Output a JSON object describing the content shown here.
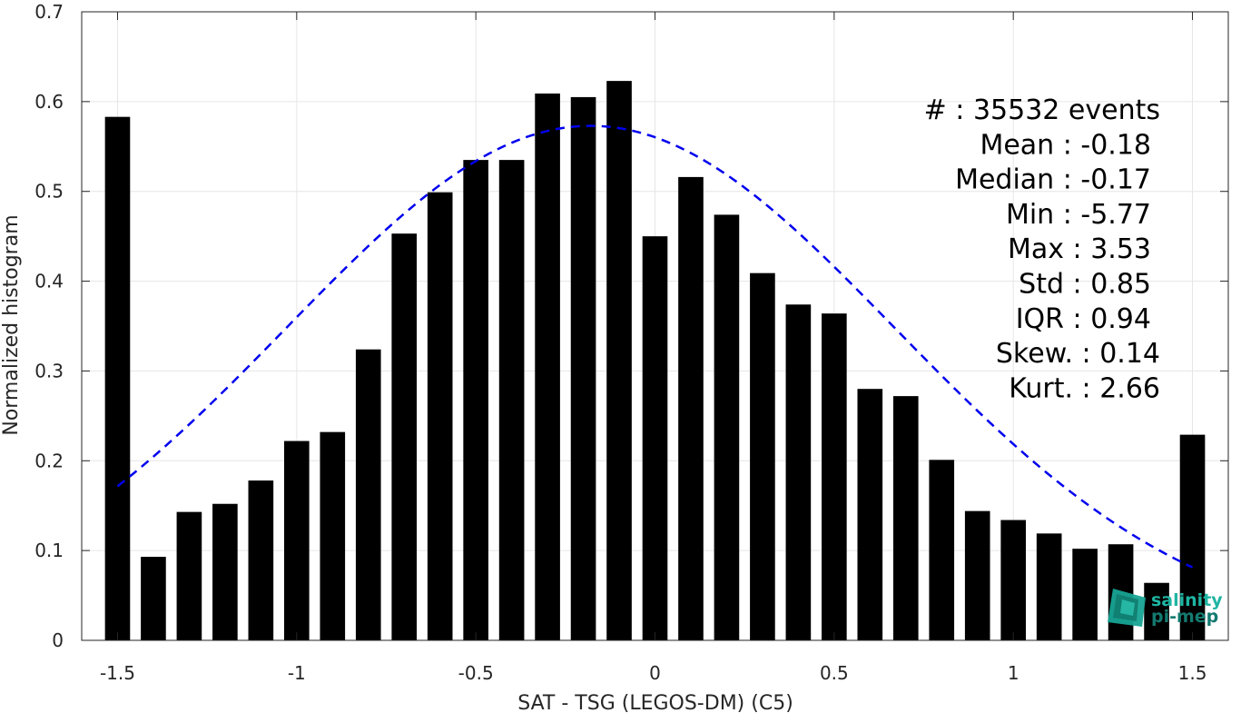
{
  "chart_data": {
    "type": "bar",
    "title": "",
    "xlabel": "SAT - TSG (LEGOS-DM) (C5)",
    "ylabel": "Normalized histogram",
    "xlim": [
      -1.6,
      1.6
    ],
    "ylim": [
      0,
      0.7
    ],
    "xticks": [
      -1.5,
      -1,
      -0.5,
      0,
      0.5,
      1,
      1.5
    ],
    "xtick_labels": [
      "-1.5",
      "-1",
      "-0.5",
      "0",
      "0.5",
      "1",
      "1.5"
    ],
    "yticks": [
      0,
      0.1,
      0.2,
      0.3,
      0.4,
      0.5,
      0.6,
      0.7
    ],
    "ytick_labels": [
      "0",
      "0.1",
      "0.2",
      "0.3",
      "0.4",
      "0.5",
      "0.6",
      "0.7"
    ],
    "grid": true,
    "bar_width": 0.07,
    "bar_color": "#000000",
    "x": [
      -1.5,
      -1.4,
      -1.3,
      -1.2,
      -1.1,
      -1.0,
      -0.9,
      -0.8,
      -0.7,
      -0.6,
      -0.5,
      -0.4,
      -0.3,
      -0.2,
      -0.1,
      0.0,
      0.1,
      0.2,
      0.3,
      0.4,
      0.5,
      0.6,
      0.7,
      0.8,
      0.9,
      1.0,
      1.1,
      1.2,
      1.3,
      1.4,
      1.5
    ],
    "values": [
      0.583,
      0.093,
      0.143,
      0.152,
      0.178,
      0.222,
      0.232,
      0.324,
      0.453,
      0.499,
      0.535,
      0.535,
      0.609,
      0.605,
      0.623,
      0.45,
      0.516,
      0.474,
      0.409,
      0.374,
      0.364,
      0.28,
      0.272,
      0.201,
      0.144,
      0.134,
      0.119,
      0.102,
      0.107,
      0.064,
      0.229
    ],
    "fit_curve": {
      "type": "gaussian",
      "mean": -0.18,
      "std": 0.85,
      "peak": 0.573,
      "x_range": [
        -1.5,
        1.5
      ],
      "color": "#0000ee",
      "style": "dashed"
    },
    "stats_text": [
      "#  : 35532 events",
      "Mean : -0.18",
      "Median : -0.17",
      "Min : -5.77",
      "Max : 3.53",
      "Std : 0.85",
      "IQR : 0.94",
      "Skew. : 0.14",
      "Kurt. : 2.66"
    ],
    "stats_placement": "top-right"
  },
  "logo": {
    "line1": "salinity",
    "line2": "pi-mep",
    "color1": "#1fb5a3",
    "color2": "#147a70"
  }
}
